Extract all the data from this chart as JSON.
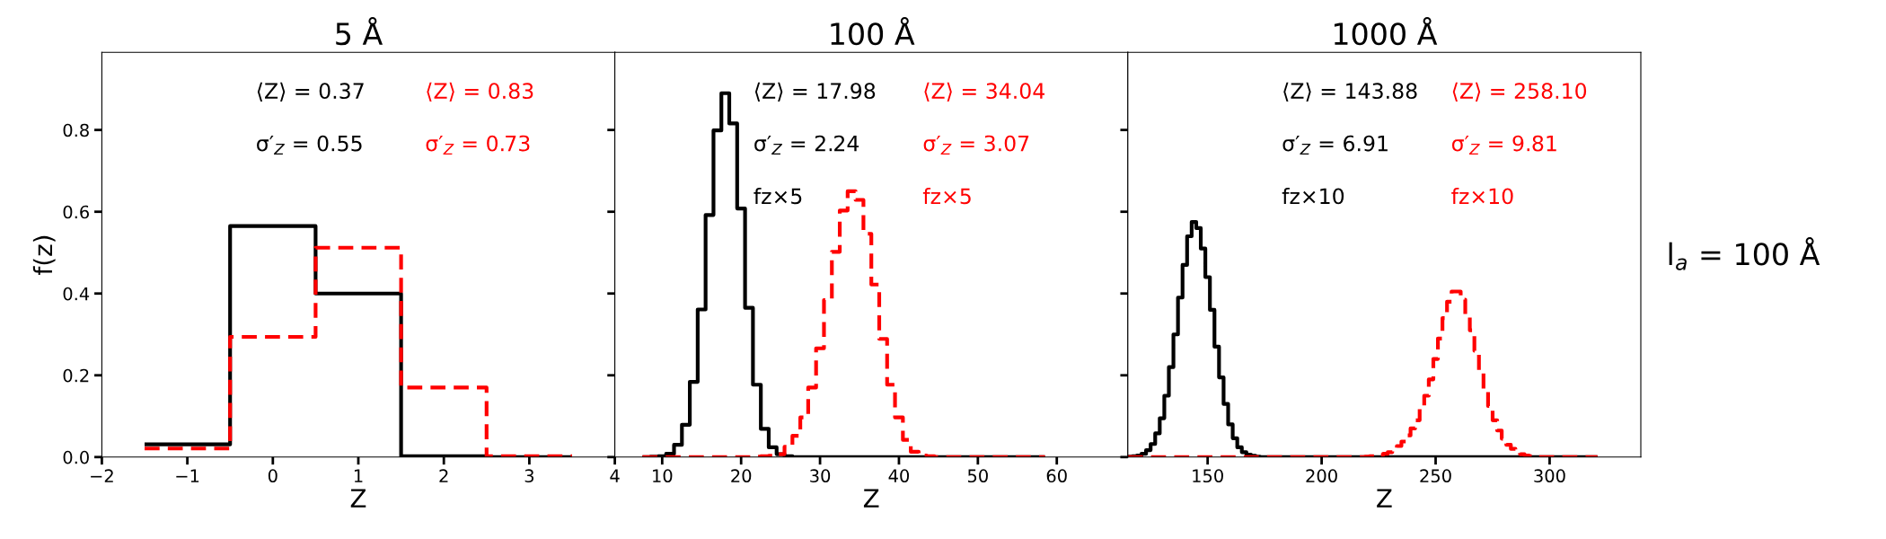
{
  "chart_data": [
    {
      "type": "histogram",
      "title": "5 Å",
      "xlabel": "Z",
      "ylabel": "f(z)",
      "xlim": [
        -2,
        4
      ],
      "xticks": [
        {
          "value": -2,
          "label": "−2"
        },
        {
          "value": -1,
          "label": "−1"
        },
        0,
        1,
        2,
        3,
        4
      ],
      "ylim": [
        0,
        0.99
      ],
      "yticks": [
        {
          "value": 0,
          "label": "0.0"
        },
        0.2,
        0.4,
        0.6,
        0.8
      ],
      "grid": false,
      "legend": false,
      "annotations": [
        "⟨Z⟩ = 0.37",
        "σ′$_{Z}$ = 0.55",
        "⟨Z⟩ = 0.83",
        "σ′$_{Z}$ = 0.73"
      ],
      "bins": [
        -1.5,
        -0.5,
        0.5,
        1.5,
        2.5,
        3.5
      ],
      "series": [
        {
          "color": "#000000",
          "line_style": "solid",
          "values": [
            0.031,
            0.565,
            0.4,
            0.002,
            0
          ]
        },
        {
          "color": "#ff0000",
          "line_style": "dashed",
          "values": [
            0.021,
            0.294,
            0.512,
            0.17,
            0.002
          ]
        }
      ]
    },
    {
      "type": "histogram",
      "title": "100 Å",
      "xlabel": "Z",
      "tick_labels": "x",
      "xlim": [
        4,
        69
      ],
      "xticks": [
        10,
        20,
        30,
        40,
        50,
        60
      ],
      "ylim": [
        0,
        0.99
      ],
      "yticks": [
        0.0,
        0.2,
        0.4,
        0.6,
        0.8
      ],
      "grid": false,
      "legend": false,
      "annotations": [
        "⟨Z⟩ = 17.98",
        "σ′$_{Z}$ = 2.24",
        "fz×5",
        "⟨Z⟩ = 34.04",
        "σ′$_{Z}$ = 3.07",
        "fz×5"
      ],
      "bins": [
        7.5,
        8.5,
        9.5,
        10.5,
        11.5,
        12.5,
        13.5,
        14.5,
        15.5,
        16.5,
        17.5,
        18.5,
        19.5,
        20.5,
        21.5,
        22.5,
        23.5,
        24.5,
        25.5,
        26.5,
        27.5,
        28.5,
        29.5,
        30.5,
        31.5,
        32.5,
        33.5,
        34.5,
        35.5,
        36.5,
        37.5,
        38.5,
        39.5,
        40.5,
        41.5,
        42.5,
        43.5,
        44.5,
        45.5,
        46.5,
        47.5,
        48.5,
        49.5,
        50.5,
        51.5,
        52.5,
        53.5,
        54.5,
        55.5,
        56.5,
        57.5,
        58.5
      ],
      "series": [
        {
          "color": "#000000",
          "line_style": "solid",
          "values": [
            0,
            0.001,
            0.002,
            0.008,
            0.03,
            0.079,
            0.184,
            0.361,
            0.592,
            0.799,
            0.89,
            0.816,
            0.608,
            0.365,
            0.177,
            0.069,
            0.024,
            0.007,
            0.002,
            0,
            0,
            0,
            0,
            0,
            0,
            0,
            0,
            0,
            0,
            0,
            0,
            0,
            0,
            0,
            0,
            0,
            0,
            0,
            0,
            0,
            0,
            0,
            0,
            0,
            0,
            0,
            0,
            0,
            0,
            0,
            0
          ]
        },
        {
          "color": "#ff0000",
          "line_style": "dashed",
          "values": [
            0,
            0,
            0,
            0,
            0,
            0,
            0,
            0,
            0,
            0,
            0,
            0,
            0,
            0,
            0.001,
            0.002,
            0.003,
            0.007,
            0.025,
            0.052,
            0.097,
            0.17,
            0.266,
            0.384,
            0.502,
            0.603,
            0.65,
            0.629,
            0.546,
            0.422,
            0.289,
            0.177,
            0.097,
            0.042,
            0.013,
            0.004,
            0.002,
            0,
            0,
            0,
            0,
            0,
            0,
            0,
            0,
            0,
            0,
            0,
            0,
            0,
            0
          ]
        }
      ]
    },
    {
      "type": "histogram",
      "title": "1000 Å",
      "xlabel": "Z",
      "tick_labels": "x",
      "xlim": [
        115,
        340
      ],
      "xticks": [
        150,
        200,
        250,
        300
      ],
      "ylim": [
        0,
        0.99
      ],
      "yticks": [
        0.0,
        0.2,
        0.4,
        0.6,
        0.8
      ],
      "grid": false,
      "legend": false,
      "annotations": [
        "⟨Z⟩ = 143.88",
        "σ′$_{Z}$ = 6.91",
        "fz×10",
        "⟨Z⟩ = 258.10",
        "σ′$_{Z}$ = 9.81",
        "fz×10",
        "l$_{a}$ = 100 Å"
      ],
      "bins": [
        115,
        117,
        119,
        121,
        123,
        125,
        127,
        129,
        131,
        133,
        135,
        137,
        139,
        141,
        143,
        145,
        147,
        149,
        151,
        153,
        155,
        157,
        159,
        161,
        163,
        165,
        167,
        169,
        171,
        173,
        175,
        177,
        179,
        181,
        183,
        185,
        187,
        189,
        191,
        193,
        195,
        197,
        199,
        201,
        203,
        205,
        207,
        209,
        211,
        213,
        215,
        217,
        219,
        221,
        223,
        225,
        227,
        229,
        231,
        233,
        235,
        237,
        239,
        241,
        243,
        245,
        247,
        249,
        251,
        253,
        255,
        257,
        259,
        261,
        263,
        265,
        267,
        269,
        271,
        273,
        275,
        277,
        279,
        281,
        283,
        285,
        287,
        289,
        291,
        293,
        295,
        297,
        299,
        301,
        303,
        305,
        307,
        309,
        311,
        313,
        315,
        317,
        319,
        321
      ],
      "series": [
        {
          "color": "#000000",
          "line_style": "solid",
          "values": [
            0.001,
            0.002,
            0.004,
            0.008,
            0.017,
            0.032,
            0.058,
            0.095,
            0.15,
            0.22,
            0.3,
            0.39,
            0.47,
            0.54,
            0.575,
            0.56,
            0.51,
            0.44,
            0.36,
            0.27,
            0.195,
            0.13,
            0.08,
            0.046,
            0.024,
            0.012,
            0.006,
            0.003,
            0.001,
            0,
            0,
            0,
            0,
            0,
            0,
            0,
            0,
            0,
            0,
            0,
            0,
            0,
            0,
            0,
            0,
            0,
            0,
            0,
            0,
            0,
            0,
            0,
            0,
            0,
            0,
            0,
            0,
            0,
            0,
            0,
            0,
            0,
            0,
            0,
            0,
            0,
            0,
            0,
            0,
            0,
            0,
            0,
            0,
            0,
            0,
            0,
            0,
            0,
            0,
            0,
            0,
            0,
            0,
            0,
            0,
            0,
            0,
            0,
            0,
            0,
            0,
            0,
            0,
            0,
            0,
            0,
            0,
            0,
            0,
            0,
            0,
            0,
            0
          ]
        },
        {
          "color": "#ff0000",
          "line_style": "dashed",
          "values": [
            0,
            0,
            0,
            0,
            0,
            0,
            0,
            0,
            0,
            0,
            0,
            0,
            0,
            0,
            0,
            0,
            0,
            0,
            0,
            0,
            0,
            0,
            0,
            0,
            0,
            0,
            0,
            0,
            0,
            0,
            0,
            0,
            0,
            0,
            0,
            0,
            0,
            0,
            0,
            0,
            0,
            0,
            0,
            0,
            0,
            0,
            0,
            0,
            0,
            0,
            0,
            0,
            0.001,
            0.002,
            0.003,
            0.005,
            0.008,
            0.012,
            0.018,
            0.027,
            0.038,
            0.053,
            0.07,
            0.09,
            0.12,
            0.15,
            0.19,
            0.24,
            0.29,
            0.34,
            0.38,
            0.405,
            0.405,
            0.385,
            0.35,
            0.31,
            0.26,
            0.21,
            0.165,
            0.125,
            0.09,
            0.065,
            0.045,
            0.03,
            0.02,
            0.012,
            0.007,
            0.004,
            0.002,
            0.001,
            0,
            0,
            0,
            0,
            0,
            0,
            0,
            0,
            0,
            0,
            0,
            0,
            0
          ]
        }
      ]
    }
  ]
}
